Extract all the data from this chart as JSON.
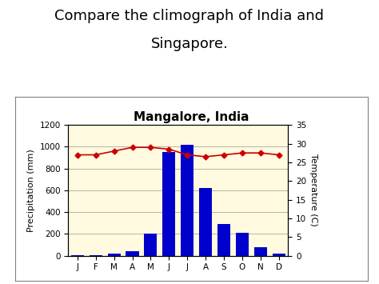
{
  "title": "Mangalore, India",
  "suptitle_line1": "Compare the climograph of India and",
  "suptitle_line2": "Singapore.",
  "months": [
    "J",
    "F",
    "M",
    "A",
    "M",
    "J",
    "J",
    "A",
    "S",
    "O",
    "N",
    "D"
  ],
  "precipitation": [
    5,
    3,
    15,
    40,
    200,
    950,
    1020,
    620,
    290,
    210,
    75,
    15
  ],
  "temperature": [
    27,
    27,
    28,
    29,
    29,
    28.5,
    27,
    26.5,
    27,
    27.5,
    27.5,
    27
  ],
  "bar_color": "#0000CC",
  "line_color": "#CC0000",
  "marker": "D",
  "plot_bg": "#FFFAE0",
  "outer_bg": "#FFFFFF",
  "left_label": "Precipitation (mm)",
  "right_label": "Temperature (C)",
  "ylim_precip": [
    0,
    1200
  ],
  "ylim_temp": [
    0,
    35
  ],
  "yticks_precip": [
    0,
    200,
    400,
    600,
    800,
    1000,
    1200
  ],
  "yticks_temp": [
    0,
    5,
    10,
    15,
    20,
    25,
    30,
    35
  ],
  "title_fontsize": 11,
  "suptitle_fontsize": 13,
  "axis_label_fontsize": 8,
  "tick_fontsize": 7.5
}
